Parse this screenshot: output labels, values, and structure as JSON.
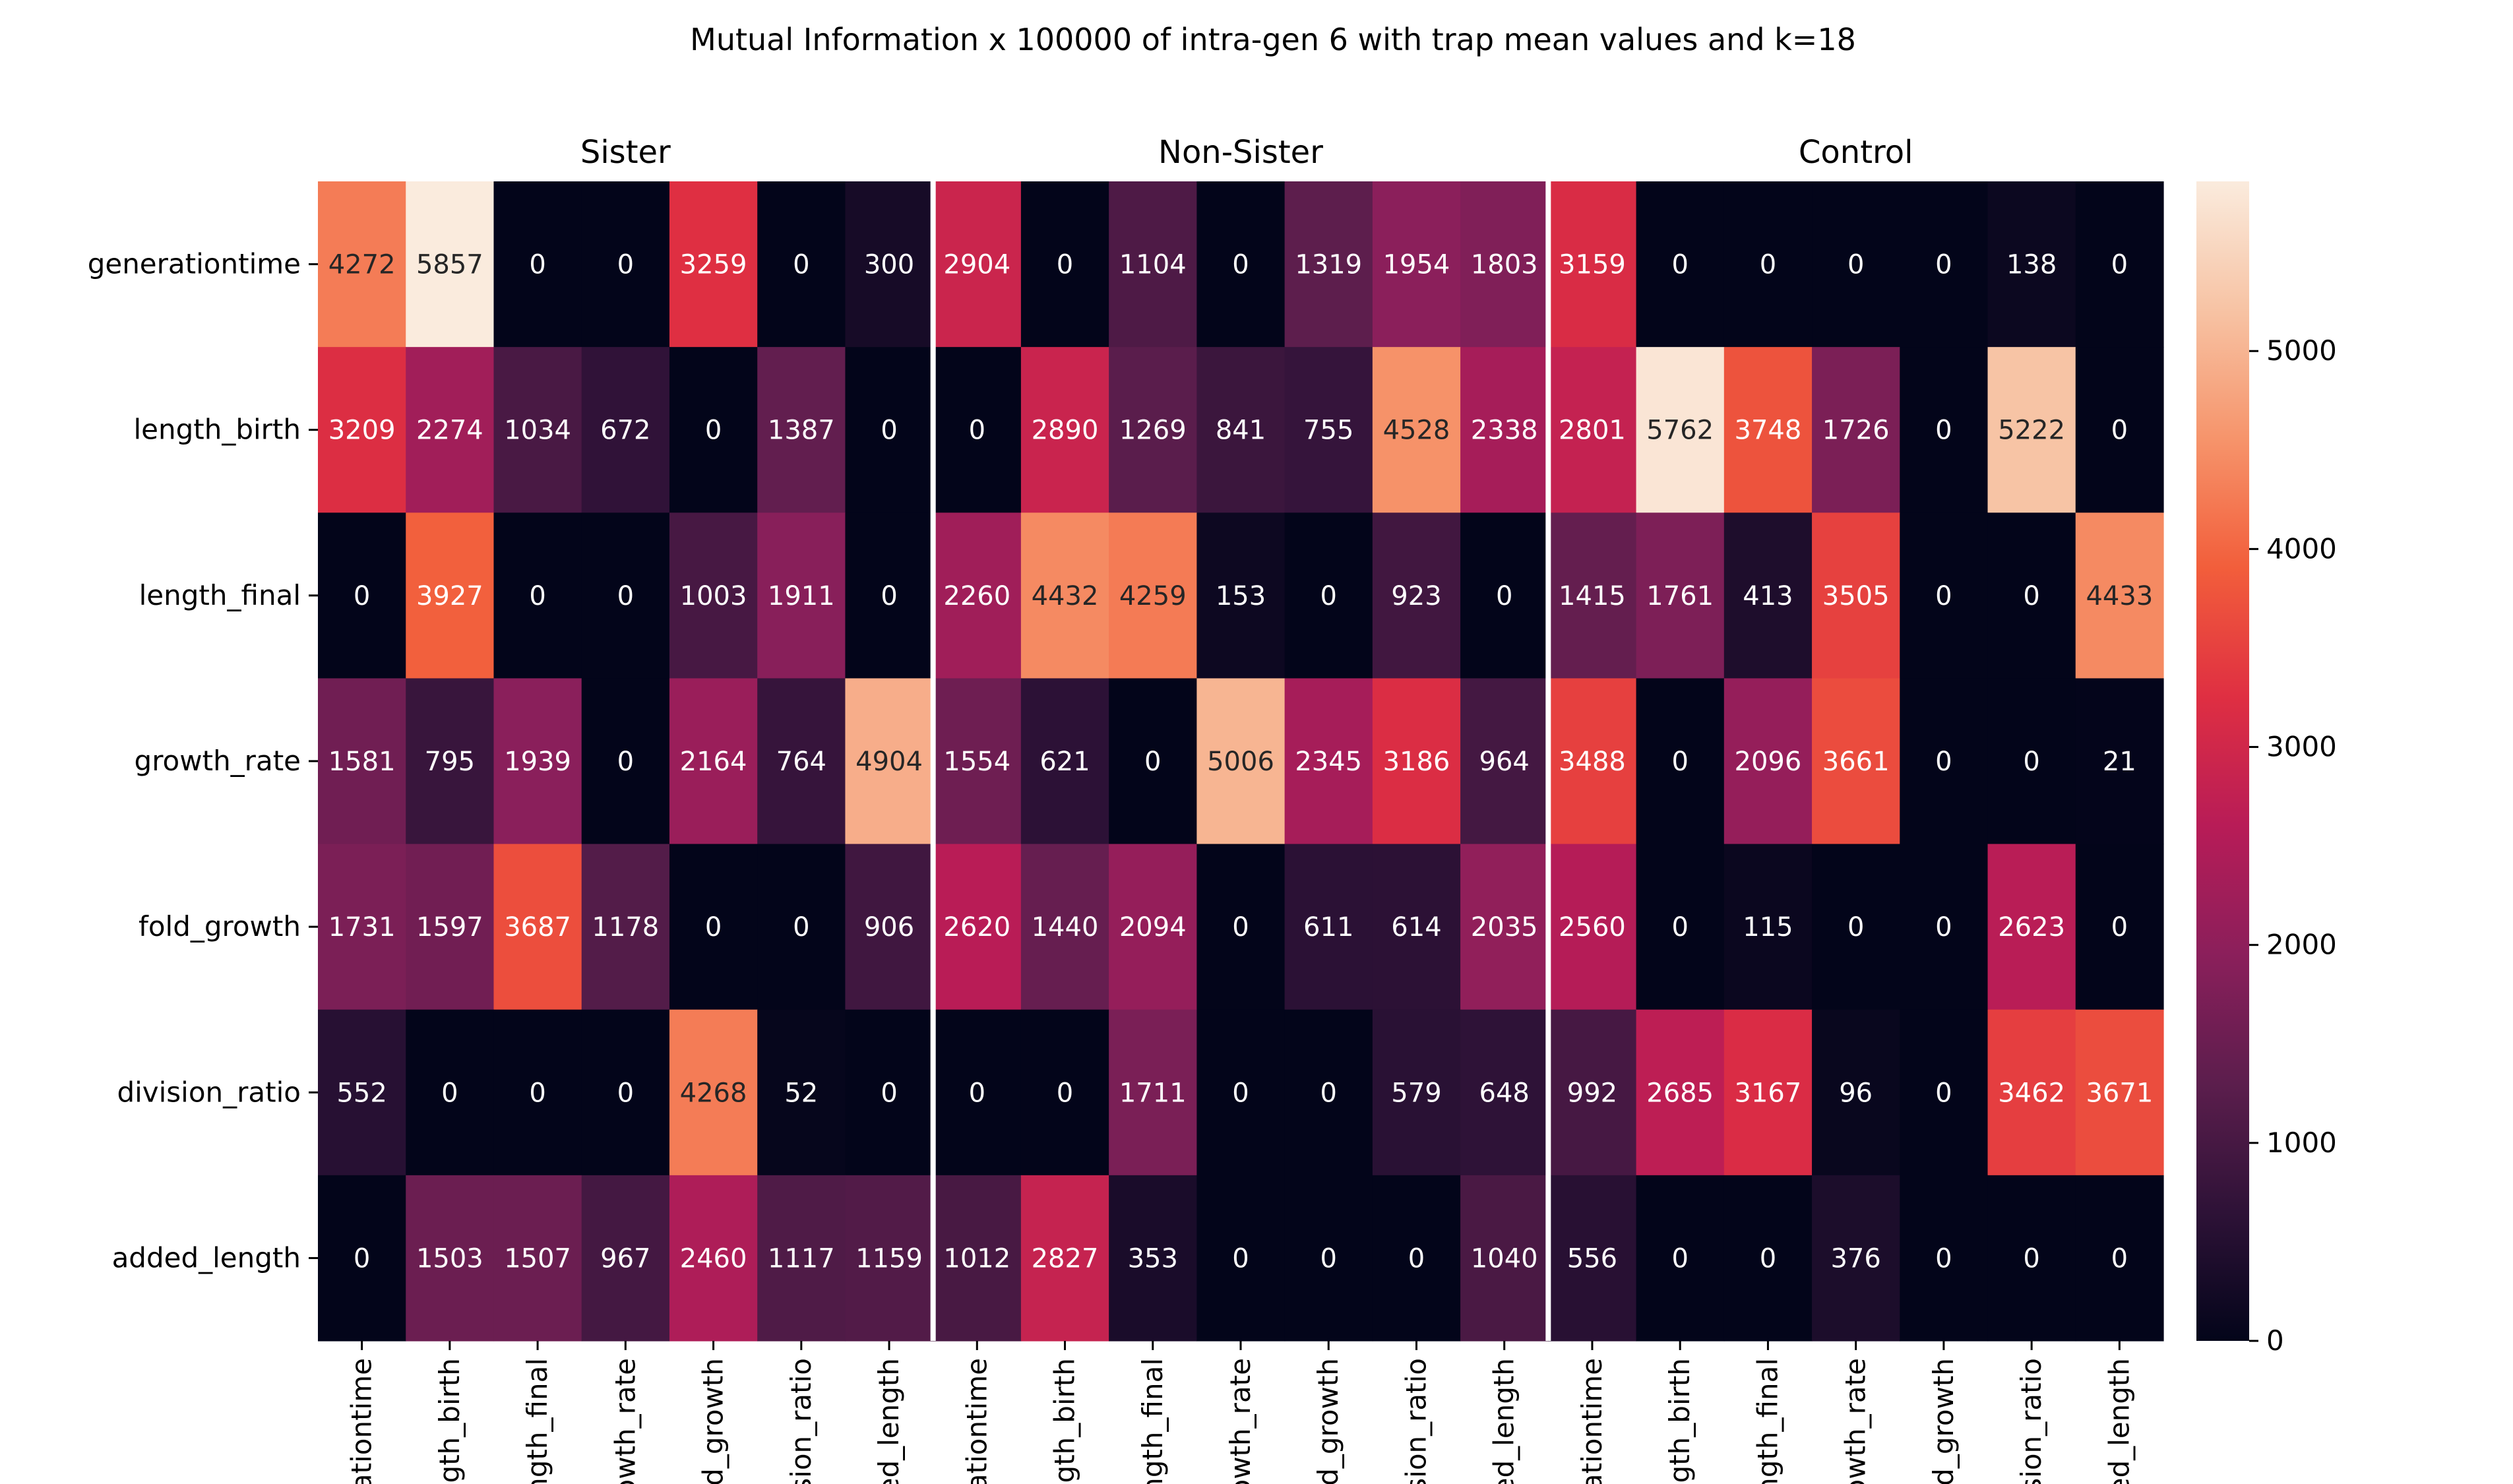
{
  "colors": {
    "background": "#ffffff",
    "divider": "#ffffff",
    "colormap": [
      "#03051a",
      "#2e1237",
      "#5c1e4d",
      "#8b1f5b",
      "#b81c57",
      "#df2f42",
      "#f25e3b",
      "#f6946b",
      "#f7c3a4",
      "#faebdd"
    ],
    "light_text": "#ffffff",
    "dark_text": "#262626"
  },
  "chart_data": {
    "type": "heatmap",
    "title": "Mutual Information x 100000 of intra-gen 6 with trap mean values and k=18",
    "groups": [
      "Sister",
      "Non-Sister",
      "Control"
    ],
    "rows": [
      "generationtime",
      "length_birth",
      "length_final",
      "growth_rate",
      "fold_growth",
      "division_ratio",
      "added_length"
    ],
    "column_tick_labels": [
      "rationtime",
      "ngth_birth",
      "ength_final",
      "rowth_rate",
      "old_growth",
      "ision_ratio",
      "ded_length",
      "rationtime",
      "ngth_birth",
      "ength_final",
      "rowth_rate",
      "old_growth",
      "ision_ratio",
      "ded_length",
      "rationtime",
      "ngth_birth",
      "ength_final",
      "rowth_rate",
      "old_growth",
      "ision_ratio",
      "ded_length"
    ],
    "values": [
      [
        4272,
        5857,
        0,
        0,
        3259,
        0,
        300,
        2904,
        0,
        1104,
        0,
        1319,
        1954,
        1803,
        3159,
        0,
        0,
        0,
        0,
        138,
        0
      ],
      [
        3209,
        2274,
        1034,
        672,
        0,
        1387,
        0,
        0,
        2890,
        1269,
        841,
        755,
        4528,
        2338,
        2801,
        5762,
        3748,
        1726,
        0,
        5222,
        0
      ],
      [
        0,
        3927,
        0,
        0,
        1003,
        1911,
        0,
        2260,
        4432,
        4259,
        153,
        0,
        923,
        0,
        1415,
        1761,
        413,
        3505,
        0,
        0,
        4433
      ],
      [
        1581,
        795,
        1939,
        0,
        2164,
        764,
        4904,
        1554,
        621,
        0,
        5006,
        2345,
        3186,
        964,
        3488,
        0,
        2096,
        3661,
        0,
        0,
        21
      ],
      [
        1731,
        1597,
        3687,
        1178,
        0,
        0,
        906,
        2620,
        1440,
        2094,
        0,
        611,
        614,
        2035,
        2560,
        0,
        115,
        0,
        0,
        2623,
        0
      ],
      [
        552,
        0,
        0,
        0,
        4268,
        52,
        0,
        0,
        0,
        1711,
        0,
        0,
        579,
        648,
        992,
        2685,
        3167,
        96,
        0,
        3462,
        3671
      ],
      [
        0,
        1503,
        1507,
        967,
        2460,
        1117,
        1159,
        1012,
        2827,
        353,
        0,
        0,
        0,
        1040,
        556,
        0,
        0,
        376,
        0,
        0,
        0
      ]
    ],
    "vmin": 0,
    "vmax": 5857,
    "colorbar_ticks": [
      0,
      1000,
      2000,
      3000,
      4000,
      5000
    ],
    "colorbar_tick_labels": [
      "0",
      "1000",
      "2000",
      "3000",
      "4000",
      "5000"
    ]
  }
}
